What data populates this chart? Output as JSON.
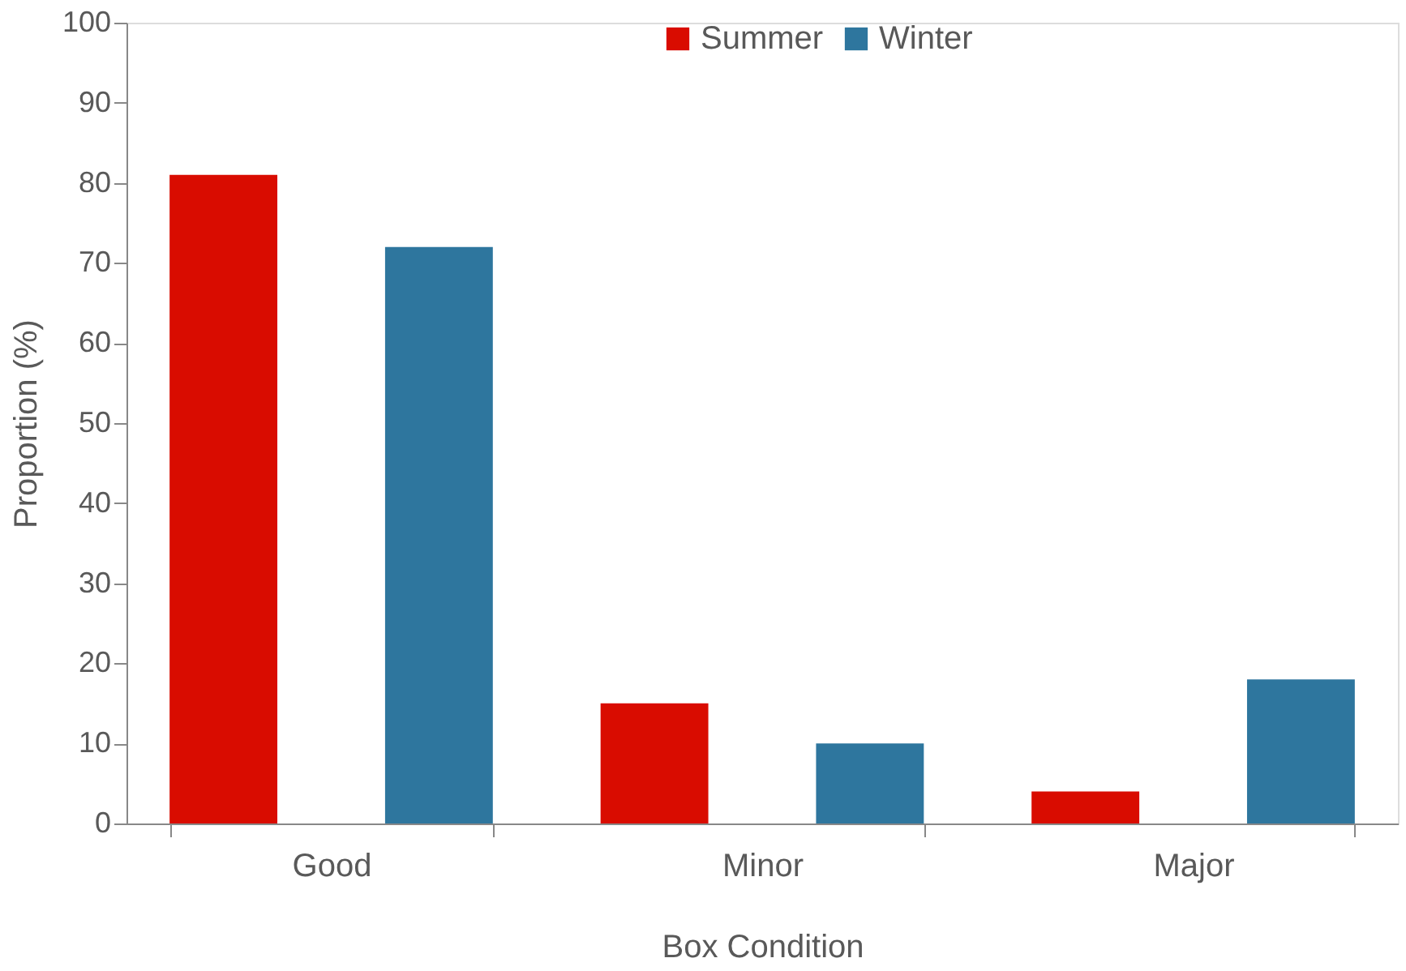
{
  "chart_data": {
    "type": "bar",
    "xlabel": "Box Condition",
    "ylabel": "Proportion (%)",
    "categories": [
      "Good",
      "Minor",
      "Major"
    ],
    "series": [
      {
        "name": "Summer",
        "color": "#d90c00",
        "values": [
          81,
          15,
          4
        ]
      },
      {
        "name": "Winter",
        "color": "#2e769e",
        "values": [
          72,
          10,
          18
        ]
      }
    ],
    "ylim": [
      0,
      100
    ],
    "yticks": [
      0,
      10,
      20,
      30,
      40,
      50,
      60,
      70,
      80,
      90,
      100
    ],
    "grid": false,
    "legend": "top"
  }
}
